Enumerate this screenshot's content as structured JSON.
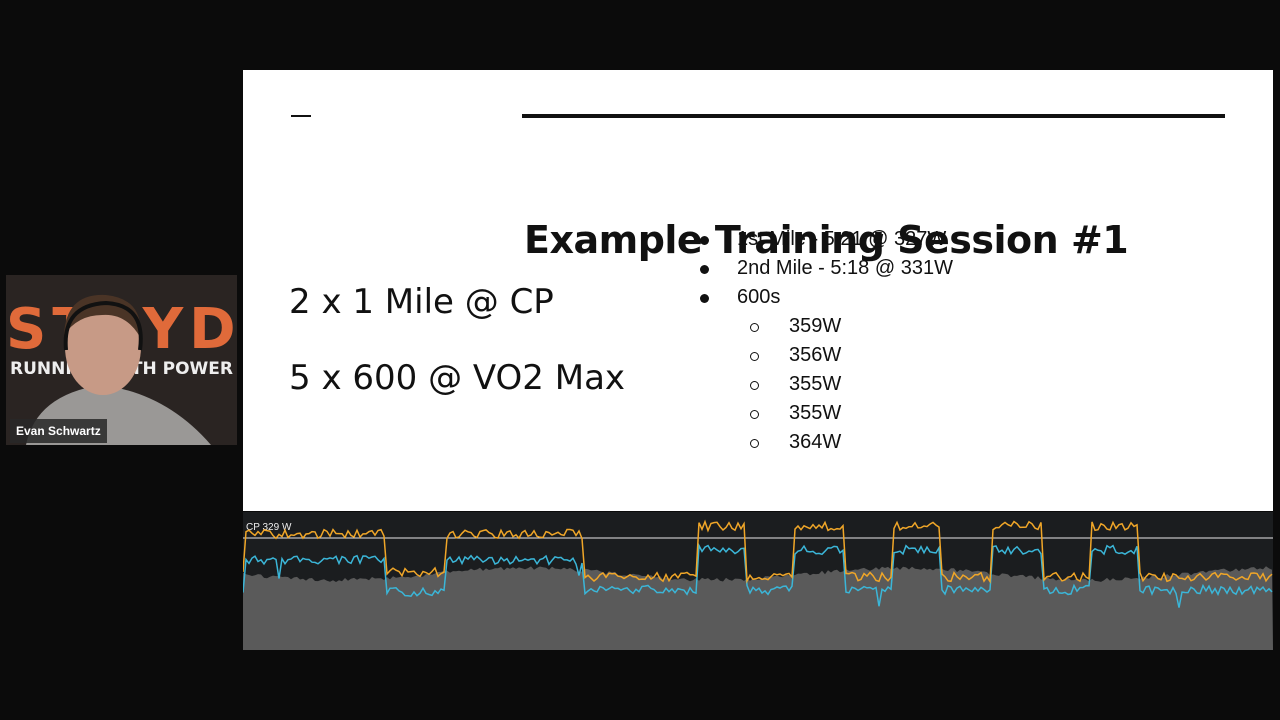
{
  "meeting": {
    "participant_name": "Evan Schwartz",
    "background_sign": {
      "brand": "STRYD",
      "tagline": "RUNNING WITH POWER"
    }
  },
  "slide": {
    "title": "Example Training Session #1",
    "workouts": [
      "2 x 1 Mile @ CP",
      "5 x 600 @ VO2 Max"
    ],
    "bullets": [
      {
        "text": "1st Mile - 5:21 @ 327W"
      },
      {
        "text": "2nd Mile - 5:18 @ 331W"
      },
      {
        "text": "600s",
        "sub_bullets": [
          "359W",
          "356W",
          "355W",
          "355W",
          "364W"
        ]
      }
    ]
  },
  "power_chart": {
    "cp_label": "CP 329 W"
  }
}
